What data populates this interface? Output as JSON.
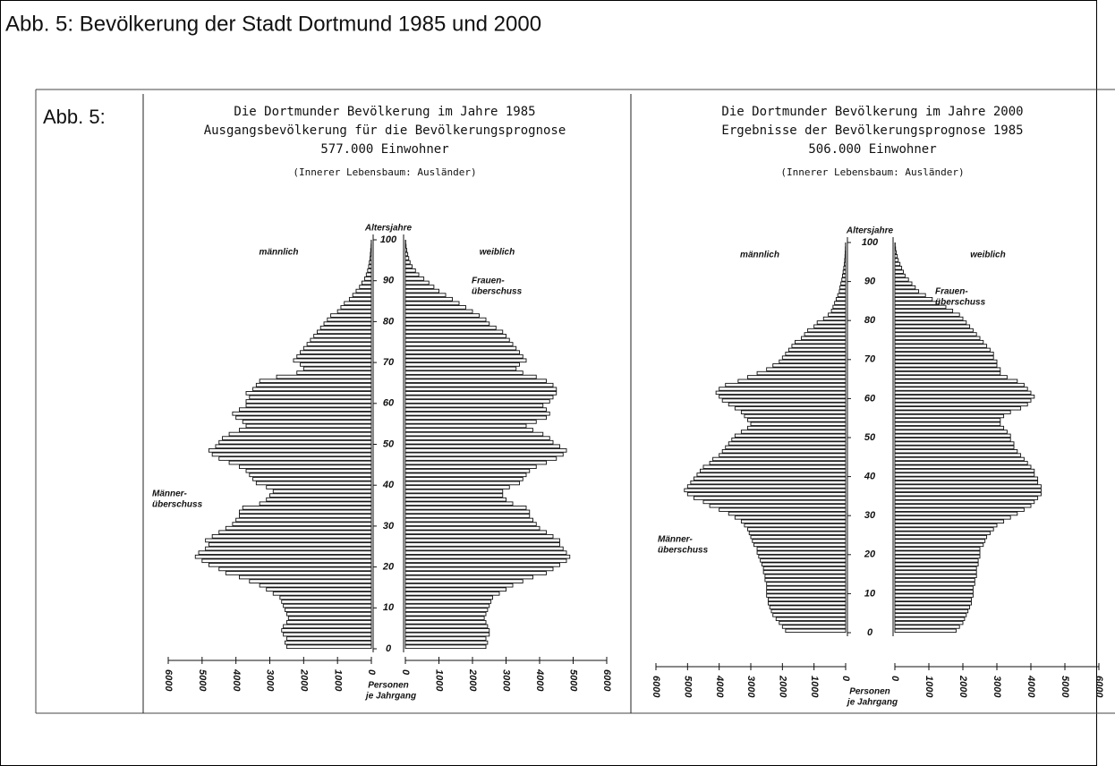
{
  "page": {
    "title": "Abb. 5: Bevölkerung der Stadt Dortmund 1985 und 2000",
    "figure_label": "Abb. 5:"
  },
  "chart_data": [
    {
      "type": "pyramid",
      "title": [
        "Die Dortmunder Bevölkerung im Jahre 1985",
        "Ausgangsbevölkerung für die Bevölkerungsprognose",
        "577.000 Einwohner"
      ],
      "subtitle": "(Innerer Lebensbaum: Ausländer)",
      "y_label": "Altersjahre",
      "x_label": [
        "Personen",
        "je Jahrgang"
      ],
      "annotations": [
        [
          "Frauen-",
          "überschuss"
        ],
        [
          "Männer-",
          "überschuss"
        ]
      ],
      "y": [
        0,
        1,
        2,
        3,
        4,
        5,
        6,
        7,
        8,
        9,
        10,
        11,
        12,
        13,
        14,
        15,
        16,
        17,
        18,
        19,
        20,
        21,
        22,
        23,
        24,
        25,
        26,
        27,
        28,
        29,
        30,
        31,
        32,
        33,
        34,
        35,
        36,
        37,
        38,
        39,
        40,
        41,
        42,
        43,
        44,
        45,
        46,
        47,
        48,
        49,
        50,
        51,
        52,
        53,
        54,
        55,
        56,
        57,
        58,
        59,
        60,
        61,
        62,
        63,
        64,
        65,
        66,
        67,
        68,
        69,
        70,
        71,
        72,
        73,
        74,
        75,
        76,
        77,
        78,
        79,
        80,
        81,
        82,
        83,
        84,
        85,
        86,
        87,
        88,
        89,
        90,
        91,
        92,
        93,
        94,
        95,
        96,
        97,
        98,
        99
      ],
      "series": [
        {
          "name": "männlich",
          "side": "left",
          "values": [
            2500,
            2550,
            2500,
            2600,
            2650,
            2600,
            2500,
            2450,
            2500,
            2550,
            2600,
            2650,
            2700,
            2900,
            3100,
            3300,
            3600,
            3900,
            4300,
            4500,
            4800,
            5000,
            5200,
            5100,
            4900,
            4800,
            4900,
            4700,
            4500,
            4300,
            4100,
            4000,
            3900,
            3900,
            3800,
            3300,
            3100,
            3000,
            2900,
            3100,
            3400,
            3500,
            3600,
            3700,
            3900,
            4200,
            4500,
            4700,
            4800,
            4600,
            4500,
            4400,
            4200,
            3900,
            3700,
            3800,
            4000,
            4100,
            3900,
            3700,
            3700,
            3600,
            3700,
            3500,
            3400,
            3300,
            2800,
            2200,
            2000,
            2100,
            2300,
            2200,
            2100,
            2000,
            1900,
            1800,
            1700,
            1600,
            1500,
            1400,
            1300,
            1200,
            1000,
            900,
            800,
            650,
            550,
            450,
            350,
            280,
            200,
            150,
            110,
            80,
            60,
            40,
            30,
            20,
            10,
            5
          ]
        },
        {
          "name": "weiblich",
          "side": "right",
          "values": [
            2400,
            2450,
            2400,
            2500,
            2500,
            2450,
            2400,
            2350,
            2400,
            2450,
            2500,
            2550,
            2600,
            2800,
            3000,
            3200,
            3500,
            3800,
            4200,
            4400,
            4600,
            4800,
            4900,
            4800,
            4700,
            4600,
            4600,
            4400,
            4200,
            4000,
            3900,
            3800,
            3700,
            3700,
            3600,
            3200,
            3000,
            2900,
            2900,
            3100,
            3400,
            3500,
            3600,
            3700,
            3900,
            4200,
            4500,
            4700,
            4800,
            4600,
            4400,
            4300,
            4100,
            3800,
            3600,
            3900,
            4200,
            4300,
            4200,
            4100,
            4300,
            4400,
            4500,
            4500,
            4400,
            4200,
            3900,
            3500,
            3300,
            3400,
            3600,
            3500,
            3400,
            3300,
            3200,
            3100,
            3000,
            2900,
            2700,
            2500,
            2400,
            2200,
            2000,
            1800,
            1600,
            1400,
            1200,
            1000,
            850,
            700,
            550,
            400,
            300,
            200,
            140,
            100,
            70,
            40,
            20,
            10
          ]
        }
      ],
      "xlim": [
        0,
        6000
      ],
      "xticks": [
        0,
        1000,
        2000,
        3000,
        4000,
        5000,
        6000
      ],
      "ylim": [
        0,
        100
      ],
      "yticks": [
        0,
        10,
        20,
        30,
        40,
        50,
        60,
        70,
        80,
        90,
        100
      ]
    },
    {
      "type": "pyramid",
      "title": [
        "Die Dortmunder Bevölkerung im Jahre 2000",
        "Ergebnisse der Bevölkerungsprognose 1985",
        "506.000 Einwohner"
      ],
      "subtitle": "(Innerer Lebensbaum: Ausländer)",
      "y_label": "Altersjahre",
      "x_label": [
        "Personen",
        "je Jahrgang"
      ],
      "annotations": [
        [
          "Frauen-",
          "überschuss"
        ],
        [
          "Männer-",
          "überschuss"
        ]
      ],
      "y": [
        0,
        1,
        2,
        3,
        4,
        5,
        6,
        7,
        8,
        9,
        10,
        11,
        12,
        13,
        14,
        15,
        16,
        17,
        18,
        19,
        20,
        21,
        22,
        23,
        24,
        25,
        26,
        27,
        28,
        29,
        30,
        31,
        32,
        33,
        34,
        35,
        36,
        37,
        38,
        39,
        40,
        41,
        42,
        43,
        44,
        45,
        46,
        47,
        48,
        49,
        50,
        51,
        52,
        53,
        54,
        55,
        56,
        57,
        58,
        59,
        60,
        61,
        62,
        63,
        64,
        65,
        66,
        67,
        68,
        69,
        70,
        71,
        72,
        73,
        74,
        75,
        76,
        77,
        78,
        79,
        80,
        81,
        82,
        83,
        84,
        85,
        86,
        87,
        88,
        89,
        90,
        91,
        92,
        93,
        94,
        95,
        96,
        97,
        98,
        99
      ],
      "series": [
        {
          "name": "männlich",
          "side": "left",
          "values": [
            1900,
            2000,
            2100,
            2200,
            2300,
            2350,
            2400,
            2450,
            2450,
            2500,
            2500,
            2500,
            2500,
            2550,
            2550,
            2600,
            2600,
            2650,
            2700,
            2750,
            2800,
            2800,
            2900,
            2950,
            3000,
            3050,
            3100,
            3200,
            3300,
            3500,
            3700,
            4000,
            4300,
            4500,
            4800,
            5000,
            5100,
            5000,
            4900,
            4800,
            4700,
            4600,
            4500,
            4300,
            4200,
            4000,
            3900,
            3800,
            3700,
            3600,
            3500,
            3300,
            3100,
            3000,
            3100,
            3200,
            3300,
            3500,
            3700,
            3900,
            4000,
            4100,
            4000,
            3800,
            3400,
            3100,
            2800,
            2500,
            2300,
            2100,
            2000,
            1900,
            1800,
            1700,
            1600,
            1400,
            1300,
            1200,
            1000,
            900,
            700,
            550,
            450,
            400,
            350,
            300,
            250,
            200,
            180,
            150,
            120,
            100,
            80,
            60,
            40,
            30,
            20,
            15,
            10,
            5
          ]
        },
        {
          "name": "weiblich",
          "side": "right",
          "values": [
            1800,
            1900,
            2000,
            2050,
            2100,
            2150,
            2200,
            2250,
            2250,
            2300,
            2300,
            2300,
            2350,
            2350,
            2400,
            2400,
            2400,
            2450,
            2450,
            2500,
            2500,
            2500,
            2600,
            2650,
            2700,
            2800,
            2900,
            3000,
            3200,
            3400,
            3600,
            3800,
            4000,
            4100,
            4200,
            4300,
            4300,
            4300,
            4200,
            4200,
            4100,
            4100,
            4000,
            3900,
            3800,
            3700,
            3600,
            3500,
            3500,
            3400,
            3400,
            3300,
            3200,
            3100,
            3100,
            3200,
            3400,
            3700,
            3900,
            4000,
            4100,
            4000,
            3900,
            3800,
            3600,
            3300,
            3100,
            3100,
            3000,
            3000,
            2900,
            2900,
            2800,
            2700,
            2600,
            2500,
            2400,
            2300,
            2200,
            2100,
            2000,
            1900,
            1700,
            1500,
            1300,
            1100,
            900,
            700,
            600,
            500,
            400,
            300,
            250,
            200,
            150,
            100,
            70,
            40,
            20,
            10
          ]
        }
      ],
      "xlim": [
        0,
        6000
      ],
      "xticks": [
        0,
        1000,
        2000,
        3000,
        4000,
        5000,
        6000
      ],
      "ylim": [
        0,
        100
      ],
      "yticks": [
        0,
        10,
        20,
        30,
        40,
        50,
        60,
        70,
        80,
        90,
        100
      ]
    }
  ]
}
